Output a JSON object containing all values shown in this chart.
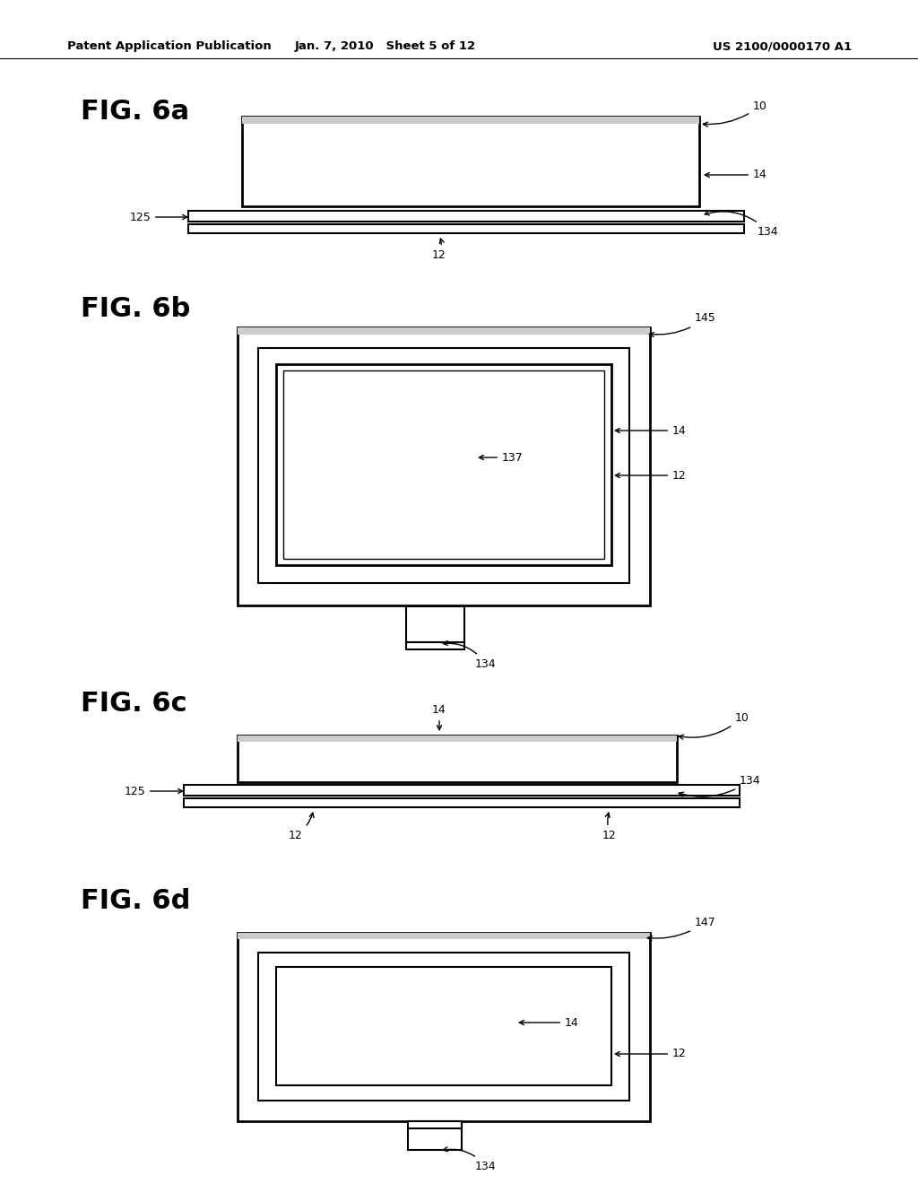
{
  "bg_color": "#ffffff",
  "line_color": "#000000",
  "header_left": "Patent Application Publication",
  "header_mid": "Jan. 7, 2010   Sheet 5 of 12",
  "header_right": "US 2100/0000170 A1"
}
